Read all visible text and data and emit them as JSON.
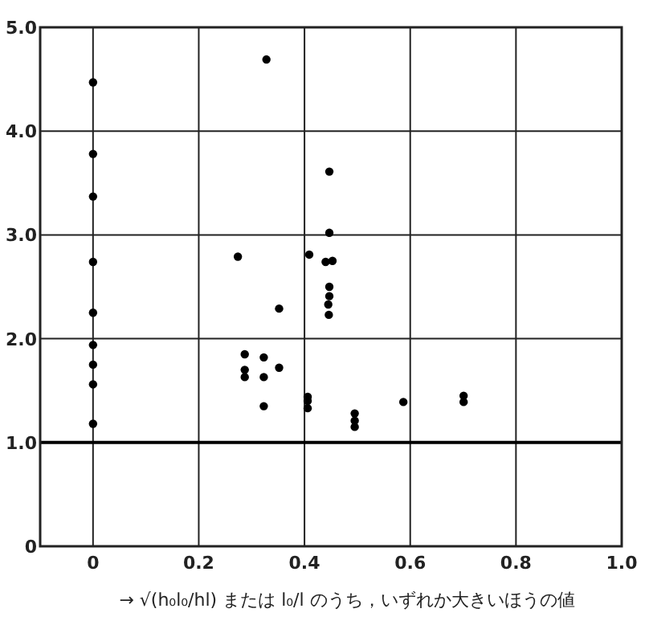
{
  "chart_data": {
    "type": "scatter",
    "xlabel": "→ √(h₀l₀/hl) または l₀/l のうち，いずれか大きいほうの値",
    "xlim": [
      -0.1,
      1.0
    ],
    "ylim": [
      0,
      5.0
    ],
    "xticks": [
      0,
      0.2,
      0.4,
      0.6,
      0.8,
      {
        "value": 1,
        "label": "1.0"
      }
    ],
    "yticks": [
      {
        "value": 0,
        "label": "0"
      },
      {
        "value": 1,
        "label": "1.0"
      },
      {
        "value": 2,
        "label": "2.0"
      },
      {
        "value": 3,
        "label": "3.0"
      },
      {
        "value": 4,
        "label": "4.0"
      },
      {
        "value": 5,
        "label": "5.0"
      }
    ],
    "grid": true,
    "marker": "circle",
    "ref_lines": [
      {
        "axis": "y",
        "value": 1.0,
        "color": "#000000"
      }
    ],
    "series": [
      {
        "color": "#000000",
        "x": [
          0,
          0,
          0,
          0,
          0,
          null,
          null,
          0,
          0,
          0,
          0,
          0.328,
          0.274,
          0.352,
          null,
          0.287,
          0.287,
          0.287,
          0.323,
          0.323,
          0.323,
          0.352,
          0.409,
          0.406,
          0.406,
          null,
          0.406,
          0.447,
          0.447,
          0.44,
          0.453,
          0.447,
          0.447,
          null,
          0.445,
          0.446,
          0.495,
          0.495,
          0.495,
          0.587,
          0.701,
          0.701
        ],
        "values": [
          4.47,
          3.78,
          3.37,
          2.74,
          2.25,
          null,
          null,
          1.94,
          1.75,
          1.56,
          1.18,
          4.69,
          2.79,
          2.29,
          null,
          1.85,
          1.7,
          1.63,
          1.82,
          1.63,
          1.35,
          1.72,
          2.81,
          1.44,
          1.4,
          null,
          1.33,
          3.61,
          3.02,
          2.74,
          2.75,
          2.5,
          2.41,
          null,
          2.33,
          2.23,
          1.28,
          1.21,
          1.15,
          1.39,
          1.45,
          1.39
        ]
      }
    ]
  }
}
